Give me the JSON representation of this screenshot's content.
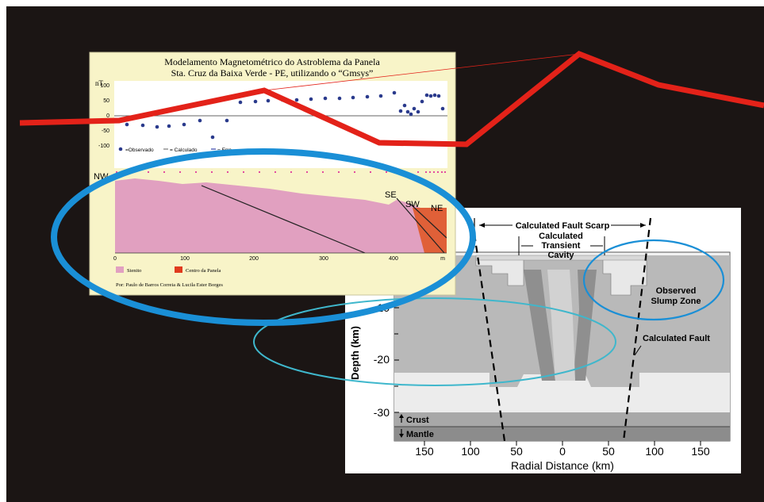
{
  "colors": {
    "slide_bg": "#1b1514",
    "red_line": "#e32219",
    "blue_ellipse": "#1a8fd6",
    "teal_ellipse": "#3fb7cc",
    "sienite": "#e1a0c0",
    "center_panela": "#e06038",
    "upper_panel_bg": "#f8f4c8"
  },
  "mag_panel": {
    "title_line1": "Modelamento Magnetométrico do Astroblema da Panela",
    "title_line2": "Sta. Cruz da Baixa Verde - PE, utilizando o “Gmsys”",
    "unit": "nT",
    "y_ticks": [
      "100",
      "50",
      "0",
      "-50",
      "-100"
    ],
    "legend": {
      "observed": "=Observado",
      "calculated": "= Calculado",
      "error": "= Erro"
    },
    "labels": {
      "nw": "NW",
      "se": "SE",
      "sw": "SW",
      "ne": "NE"
    },
    "x_ticks": [
      "0",
      "100",
      "200",
      "300",
      "400"
    ],
    "x_unit": "m",
    "legend_sienite": "Sienito",
    "legend_center": "Centro da Panela",
    "credit": "Por: Paulo de Barros Correia & Lucila Ester Borges"
  },
  "crater_panel": {
    "fault_scarp": "Calculated Fault Scarp",
    "transient_l1": "Calculated",
    "transient_l2": "Transient",
    "transient_l3": "Cavity",
    "slump_l1": "Observed",
    "slump_l2": "Slump Zone",
    "calc_fault": "Calculated Fault",
    "y_label": "Depth (km)",
    "y_ticks": [
      "-10",
      "-20",
      "-30"
    ],
    "crust": "Crust",
    "mantle": "Mantle",
    "x_ticks": [
      "150",
      "100",
      "50",
      "0",
      "50",
      "100",
      "150"
    ],
    "x_label": "Radial Distance (km)"
  }
}
